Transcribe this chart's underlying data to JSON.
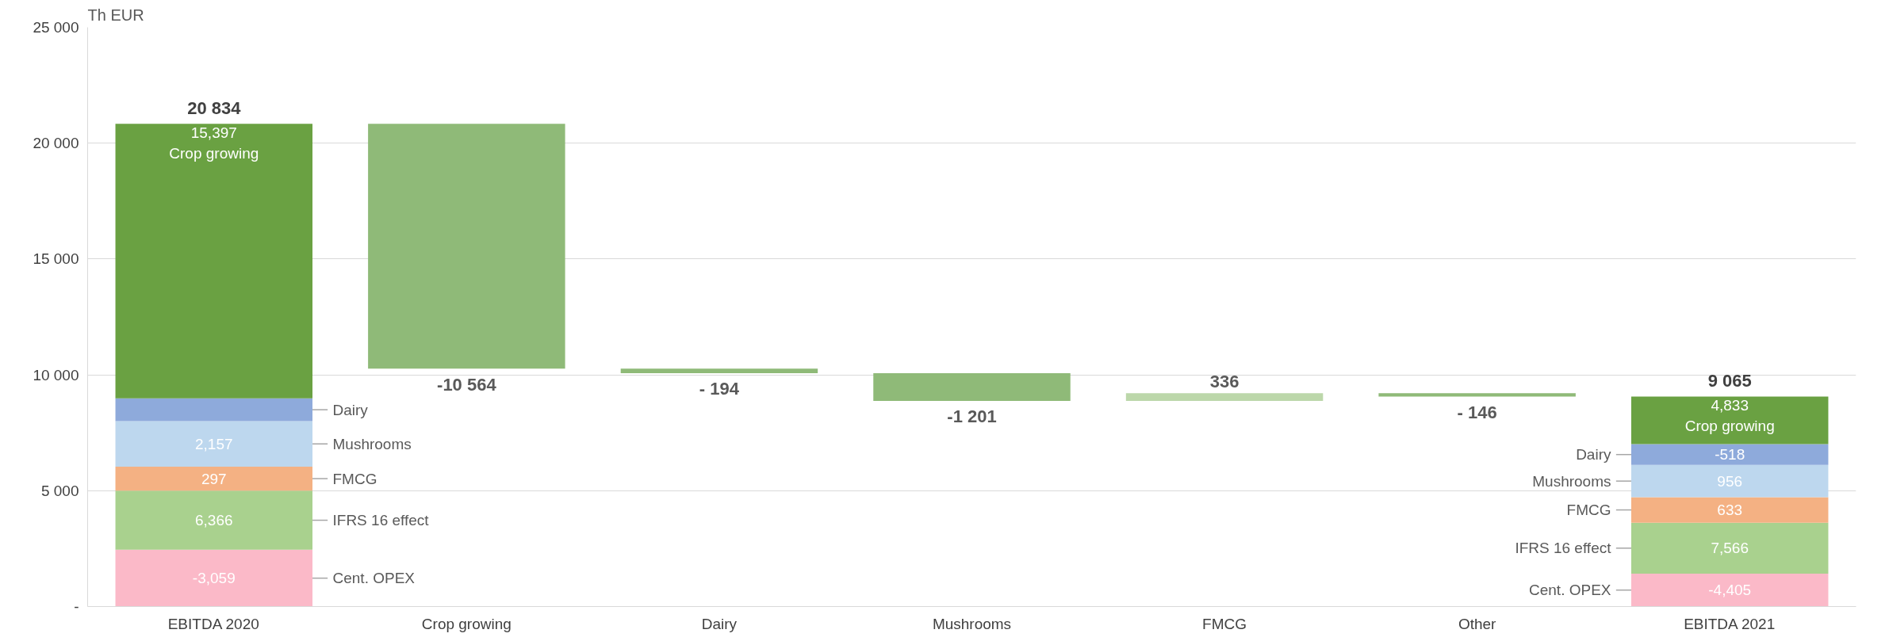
{
  "chart_data": {
    "type": "bar",
    "stacked": true,
    "ylabel": "Th EUR",
    "categories": [
      "EBITDA 2020",
      "Crop growing",
      "Dairy",
      "Mushrooms",
      "FMCG",
      "Other",
      "EBITDA 2021"
    ],
    "ylim": [
      0,
      25000
    ],
    "yticks": [
      {
        "value": 0,
        "label": "-"
      },
      {
        "value": 5000,
        "label": "5 000"
      },
      {
        "value": 10000,
        "label": "10 000"
      },
      {
        "value": 15000,
        "label": "15 000"
      },
      {
        "value": 20000,
        "label": "20 000"
      },
      {
        "value": 25000,
        "label": "25 000"
      }
    ],
    "grid": "y",
    "totals": [
      "20 834",
      null,
      null,
      null,
      null,
      null,
      "9 065"
    ],
    "series": [
      {
        "name": "Cent. OPEX",
        "color": "#fbb9c8",
        "values": [
          2450,
          null,
          null,
          null,
          null,
          null,
          1420
        ]
      },
      {
        "name": "IFRS 16 effect",
        "color": "#a9d18e",
        "values": [
          2550,
          null,
          null,
          null,
          null,
          null,
          2200
        ]
      },
      {
        "name": "FMCG",
        "color": "#f4b183",
        "values": [
          1040,
          null,
          null,
          null,
          null,
          null,
          1100
        ]
      },
      {
        "name": "Mushrooms",
        "color": "#bdd7ee",
        "values": [
          1960,
          null,
          null,
          null,
          null,
          null,
          1390
        ]
      },
      {
        "name": "Dairy",
        "color": "#8eaadb",
        "values": [
          990,
          null,
          null,
          null,
          null,
          null,
          900
        ]
      },
      {
        "name": "Crop growing",
        "color": "#6aa142",
        "values": [
          11844,
          null,
          null,
          null,
          null,
          null,
          2055
        ]
      },
      {
        "colors": [
          null,
          "#8fba78",
          "#8fba78",
          "#8fba78",
          "#bcd7aa",
          "#8fba78",
          null
        ],
        "base": [
          null,
          20834,
          10270,
          10076,
          8875,
          9211,
          null
        ],
        "values": [
          null,
          -10564,
          -194,
          -1201,
          336,
          -146,
          null
        ],
        "value_labels": [
          null,
          "-10 564",
          "- 194",
          "-1 201",
          "336",
          "- 146",
          null
        ]
      }
    ],
    "annotations": [
      {
        "text": "-3,059",
        "x": "EBITDA 2020",
        "y": 2450
      },
      {
        "text": "6,366",
        "x": "EBITDA 2020",
        "y": 5000
      },
      {
        "text": "297",
        "x": "EBITDA 2020",
        "y": 6040
      },
      {
        "text": "2,157",
        "x": "EBITDA 2020",
        "y": 8000
      },
      {
        "text": "15,397",
        "x": "EBITDA 2020",
        "y": 20834
      },
      {
        "text": "-4,405",
        "x": "EBITDA 2021",
        "y": 1420
      },
      {
        "text": "7,566",
        "x": "EBITDA 2021",
        "y": 3620
      },
      {
        "text": "633",
        "x": "EBITDA 2021",
        "y": 4720
      },
      {
        "text": "956",
        "x": "EBITDA 2021",
        "y": 6110
      },
      {
        "text": "-518",
        "x": "EBITDA 2021",
        "y": 7010
      },
      {
        "text": "4,833",
        "x": "EBITDA 2021",
        "y": 9065
      }
    ]
  }
}
